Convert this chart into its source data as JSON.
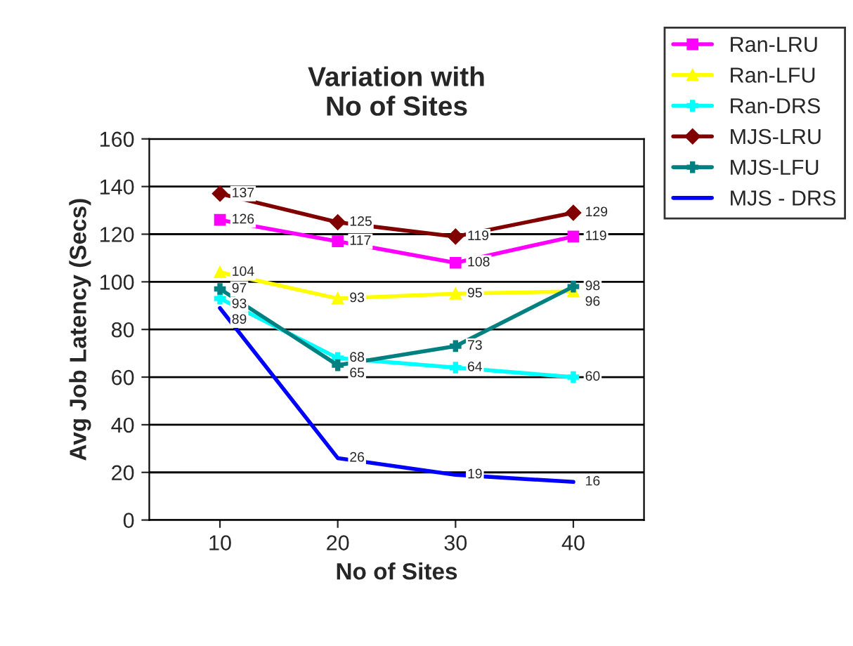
{
  "chart_data": {
    "type": "line",
    "title": "Variation with\nNo of Sites",
    "xlabel": "No of Sites",
    "ylabel": "Avg Job Latency (Secs)",
    "categories": [
      "10",
      "20",
      "30",
      "40"
    ],
    "series": [
      {
        "name": "Ran-LRU",
        "color": "#ff00ff",
        "marker": "square",
        "values": [
          126,
          117,
          108,
          119
        ]
      },
      {
        "name": "Ran-LFU",
        "color": "#ffff00",
        "marker": "triangle",
        "values": [
          104,
          93,
          95,
          96
        ]
      },
      {
        "name": "Ran-DRS",
        "color": "#00ffff",
        "marker": "cross",
        "values": [
          93,
          68,
          64,
          60
        ]
      },
      {
        "name": "MJS-LRU",
        "color": "#800000",
        "marker": "diamond",
        "values": [
          137,
          125,
          119,
          129
        ]
      },
      {
        "name": "MJS-LFU",
        "color": "#008080",
        "marker": "cross",
        "values": [
          97,
          65,
          73,
          98
        ]
      },
      {
        "name": "MJS - DRS",
        "color": "#0000ff",
        "marker": "none",
        "values": [
          89,
          26,
          19,
          16
        ]
      }
    ],
    "ylim": [
      0,
      160
    ],
    "yticks": [
      0,
      20,
      40,
      60,
      80,
      100,
      120,
      140,
      160
    ],
    "grid": "y",
    "legend": "right",
    "data_labels": true
  }
}
